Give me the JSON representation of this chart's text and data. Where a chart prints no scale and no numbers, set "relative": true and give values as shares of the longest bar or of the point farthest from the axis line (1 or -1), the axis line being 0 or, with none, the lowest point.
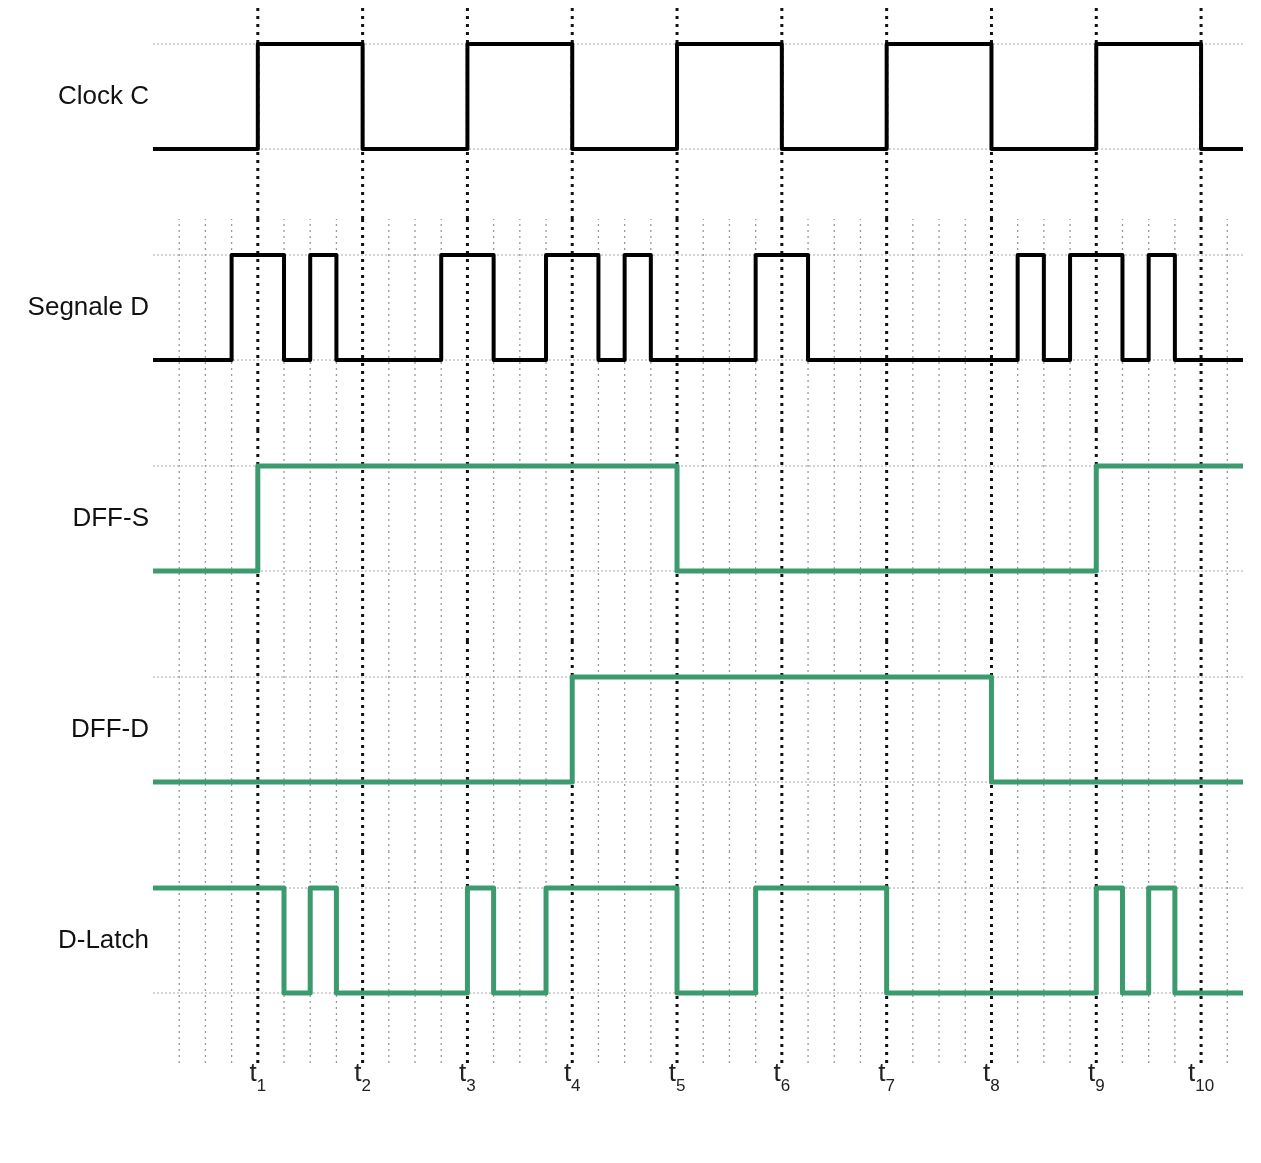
{
  "chart_data": [
    {
      "type": "step",
      "ylabel": "Clock C",
      "relative": true,
      "grid": true,
      "tick_labels": false,
      "xlim": [
        0,
        10.4
      ],
      "xticks": [
        {
          "value": 1,
          "label": null
        },
        {
          "value": 2,
          "label": null
        },
        {
          "value": 3,
          "label": null
        },
        {
          "value": 4,
          "label": null
        },
        {
          "value": 5,
          "label": null
        },
        {
          "value": 6,
          "label": null
        },
        {
          "value": 7,
          "label": null
        },
        {
          "value": 8,
          "label": null
        },
        {
          "value": 9,
          "label": null
        },
        {
          "value": 10,
          "label": null
        }
      ],
      "series": [
        {
          "color": "#000000",
          "x": [
            0,
            1,
            2,
            3,
            4,
            5,
            6,
            7,
            8,
            9,
            10,
            10.4
          ],
          "values": [
            0,
            1,
            0,
            1,
            0,
            1,
            0,
            1,
            0,
            1,
            0,
            0
          ]
        }
      ]
    },
    {
      "type": "step",
      "ylabel": "Segnale D",
      "relative": true,
      "grid": true,
      "tick_labels": false,
      "xlim": [
        0,
        10.4
      ],
      "xticks": [
        {
          "value": 0.25,
          "label": null
        },
        {
          "value": 0.5,
          "label": null
        },
        {
          "value": 0.75,
          "label": null
        },
        {
          "value": 1,
          "label": null
        },
        {
          "value": 1.25,
          "label": null
        },
        {
          "value": 1.5,
          "label": null
        },
        {
          "value": 1.75,
          "label": null
        },
        {
          "value": 2,
          "label": null
        },
        {
          "value": 2.25,
          "label": null
        },
        {
          "value": 2.5,
          "label": null
        },
        {
          "value": 2.75,
          "label": null
        },
        {
          "value": 3,
          "label": null
        },
        {
          "value": 3.25,
          "label": null
        },
        {
          "value": 3.5,
          "label": null
        },
        {
          "value": 3.75,
          "label": null
        },
        {
          "value": 4,
          "label": null
        },
        {
          "value": 4.25,
          "label": null
        },
        {
          "value": 4.5,
          "label": null
        },
        {
          "value": 4.75,
          "label": null
        },
        {
          "value": 5,
          "label": null
        },
        {
          "value": 5.25,
          "label": null
        },
        {
          "value": 5.5,
          "label": null
        },
        {
          "value": 5.75,
          "label": null
        },
        {
          "value": 6,
          "label": null
        },
        {
          "value": 6.25,
          "label": null
        },
        {
          "value": 6.5,
          "label": null
        },
        {
          "value": 6.75,
          "label": null
        },
        {
          "value": 7,
          "label": null
        },
        {
          "value": 7.25,
          "label": null
        },
        {
          "value": 7.5,
          "label": null
        },
        {
          "value": 7.75,
          "label": null
        },
        {
          "value": 8,
          "label": null
        },
        {
          "value": 8.25,
          "label": null
        },
        {
          "value": 8.5,
          "label": null
        },
        {
          "value": 8.75,
          "label": null
        },
        {
          "value": 9,
          "label": null
        },
        {
          "value": 9.25,
          "label": null
        },
        {
          "value": 9.5,
          "label": null
        },
        {
          "value": 9.75,
          "label": null
        },
        {
          "value": 10,
          "label": null
        },
        {
          "value": 10.25,
          "label": null
        }
      ],
      "series": [
        {
          "color": "#000000",
          "x": [
            0,
            0.75,
            1.25,
            1.5,
            1.75,
            2.75,
            3.25,
            3.75,
            4.25,
            4.5,
            4.75,
            5.75,
            6.25,
            8.25,
            8.5,
            8.75,
            9.25,
            9.5,
            9.75,
            10.4
          ],
          "values": [
            0,
            1,
            0,
            1,
            0,
            1,
            0,
            1,
            0,
            1,
            0,
            1,
            0,
            1,
            0,
            1,
            0,
            1,
            0,
            0
          ]
        }
      ]
    },
    {
      "type": "step",
      "ylabel": "DFF-S",
      "relative": true,
      "grid": true,
      "tick_labels": false,
      "xlim": [
        0,
        10.4
      ],
      "xticks": [
        {
          "value": 0.25,
          "label": null
        },
        {
          "value": 0.5,
          "label": null
        },
        {
          "value": 0.75,
          "label": null
        },
        {
          "value": 1,
          "label": null
        },
        {
          "value": 1.25,
          "label": null
        },
        {
          "value": 1.5,
          "label": null
        },
        {
          "value": 1.75,
          "label": null
        },
        {
          "value": 2,
          "label": null
        },
        {
          "value": 2.25,
          "label": null
        },
        {
          "value": 2.5,
          "label": null
        },
        {
          "value": 2.75,
          "label": null
        },
        {
          "value": 3,
          "label": null
        },
        {
          "value": 3.25,
          "label": null
        },
        {
          "value": 3.5,
          "label": null
        },
        {
          "value": 3.75,
          "label": null
        },
        {
          "value": 4,
          "label": null
        },
        {
          "value": 4.25,
          "label": null
        },
        {
          "value": 4.5,
          "label": null
        },
        {
          "value": 4.75,
          "label": null
        },
        {
          "value": 5,
          "label": null
        },
        {
          "value": 5.25,
          "label": null
        },
        {
          "value": 5.5,
          "label": null
        },
        {
          "value": 5.75,
          "label": null
        },
        {
          "value": 6,
          "label": null
        },
        {
          "value": 6.25,
          "label": null
        },
        {
          "value": 6.5,
          "label": null
        },
        {
          "value": 6.75,
          "label": null
        },
        {
          "value": 7,
          "label": null
        },
        {
          "value": 7.25,
          "label": null
        },
        {
          "value": 7.5,
          "label": null
        },
        {
          "value": 7.75,
          "label": null
        },
        {
          "value": 8,
          "label": null
        },
        {
          "value": 8.25,
          "label": null
        },
        {
          "value": 8.5,
          "label": null
        },
        {
          "value": 8.75,
          "label": null
        },
        {
          "value": 9,
          "label": null
        },
        {
          "value": 9.25,
          "label": null
        },
        {
          "value": 9.5,
          "label": null
        },
        {
          "value": 9.75,
          "label": null
        },
        {
          "value": 10,
          "label": null
        },
        {
          "value": 10.25,
          "label": null
        }
      ],
      "series": [
        {
          "color": "#3c9b6e",
          "x": [
            0,
            1,
            5,
            9,
            10.4
          ],
          "values": [
            0,
            1,
            0,
            1,
            1
          ]
        }
      ]
    },
    {
      "type": "step",
      "ylabel": "DFF-D",
      "relative": true,
      "grid": true,
      "tick_labels": false,
      "xlim": [
        0,
        10.4
      ],
      "xticks": [
        {
          "value": 0.25,
          "label": null
        },
        {
          "value": 0.5,
          "label": null
        },
        {
          "value": 0.75,
          "label": null
        },
        {
          "value": 1,
          "label": null
        },
        {
          "value": 1.25,
          "label": null
        },
        {
          "value": 1.5,
          "label": null
        },
        {
          "value": 1.75,
          "label": null
        },
        {
          "value": 2,
          "label": null
        },
        {
          "value": 2.25,
          "label": null
        },
        {
          "value": 2.5,
          "label": null
        },
        {
          "value": 2.75,
          "label": null
        },
        {
          "value": 3,
          "label": null
        },
        {
          "value": 3.25,
          "label": null
        },
        {
          "value": 3.5,
          "label": null
        },
        {
          "value": 3.75,
          "label": null
        },
        {
          "value": 4,
          "label": null
        },
        {
          "value": 4.25,
          "label": null
        },
        {
          "value": 4.5,
          "label": null
        },
        {
          "value": 4.75,
          "label": null
        },
        {
          "value": 5,
          "label": null
        },
        {
          "value": 5.25,
          "label": null
        },
        {
          "value": 5.5,
          "label": null
        },
        {
          "value": 5.75,
          "label": null
        },
        {
          "value": 6,
          "label": null
        },
        {
          "value": 6.25,
          "label": null
        },
        {
          "value": 6.5,
          "label": null
        },
        {
          "value": 6.75,
          "label": null
        },
        {
          "value": 7,
          "label": null
        },
        {
          "value": 7.25,
          "label": null
        },
        {
          "value": 7.5,
          "label": null
        },
        {
          "value": 7.75,
          "label": null
        },
        {
          "value": 8,
          "label": null
        },
        {
          "value": 8.25,
          "label": null
        },
        {
          "value": 8.5,
          "label": null
        },
        {
          "value": 8.75,
          "label": null
        },
        {
          "value": 9,
          "label": null
        },
        {
          "value": 9.25,
          "label": null
        },
        {
          "value": 9.5,
          "label": null
        },
        {
          "value": 9.75,
          "label": null
        },
        {
          "value": 10,
          "label": null
        },
        {
          "value": 10.25,
          "label": null
        }
      ],
      "series": [
        {
          "color": "#3c9b6e",
          "x": [
            0,
            4,
            8,
            10.4
          ],
          "values": [
            0,
            1,
            0,
            0
          ]
        }
      ]
    },
    {
      "type": "step",
      "ylabel": "D-Latch",
      "relative": true,
      "grid": true,
      "tick_labels": "x",
      "xlim": [
        0,
        10.4
      ],
      "xticks": [
        {
          "value": 0.25,
          "label": null
        },
        {
          "value": 0.5,
          "label": null
        },
        {
          "value": 0.75,
          "label": null
        },
        {
          "value": 1,
          "label": "t$_{1}$"
        },
        {
          "value": 1.25,
          "label": null
        },
        {
          "value": 1.5,
          "label": null
        },
        {
          "value": 1.75,
          "label": null
        },
        {
          "value": 2,
          "label": "t$_{2}$"
        },
        {
          "value": 2.25,
          "label": null
        },
        {
          "value": 2.5,
          "label": null
        },
        {
          "value": 2.75,
          "label": null
        },
        {
          "value": 3,
          "label": "t$_{3}$"
        },
        {
          "value": 3.25,
          "label": null
        },
        {
          "value": 3.5,
          "label": null
        },
        {
          "value": 3.75,
          "label": null
        },
        {
          "value": 4,
          "label": "t$_{4}$"
        },
        {
          "value": 4.25,
          "label": null
        },
        {
          "value": 4.5,
          "label": null
        },
        {
          "value": 4.75,
          "label": null
        },
        {
          "value": 5,
          "label": "t$_{5}$"
        },
        {
          "value": 5.25,
          "label": null
        },
        {
          "value": 5.5,
          "label": null
        },
        {
          "value": 5.75,
          "label": null
        },
        {
          "value": 6,
          "label": "t$_{6}$"
        },
        {
          "value": 6.25,
          "label": null
        },
        {
          "value": 6.5,
          "label": null
        },
        {
          "value": 6.75,
          "label": null
        },
        {
          "value": 7,
          "label": "t$_{7}$"
        },
        {
          "value": 7.25,
          "label": null
        },
        {
          "value": 7.5,
          "label": null
        },
        {
          "value": 7.75,
          "label": null
        },
        {
          "value": 8,
          "label": "t$_{8}$"
        },
        {
          "value": 8.25,
          "label": null
        },
        {
          "value": 8.5,
          "label": null
        },
        {
          "value": 8.75,
          "label": null
        },
        {
          "value": 9,
          "label": "t$_{9}$"
        },
        {
          "value": 9.25,
          "label": null
        },
        {
          "value": 9.5,
          "label": null
        },
        {
          "value": 9.75,
          "label": null
        },
        {
          "value": 10,
          "label": "t$_{10}$"
        },
        {
          "value": 10.25,
          "label": null
        }
      ],
      "series": [
        {
          "color": "#3c9b6e",
          "x": [
            0,
            1.25,
            1.5,
            1.75,
            3,
            3.25,
            3.75,
            5,
            5.75,
            7,
            9,
            9.25,
            9.5,
            9.75,
            10.4
          ],
          "values": [
            1,
            0,
            1,
            0,
            1,
            0,
            1,
            0,
            1,
            0,
            1,
            0,
            1,
            0,
            0
          ]
        }
      ]
    }
  ]
}
